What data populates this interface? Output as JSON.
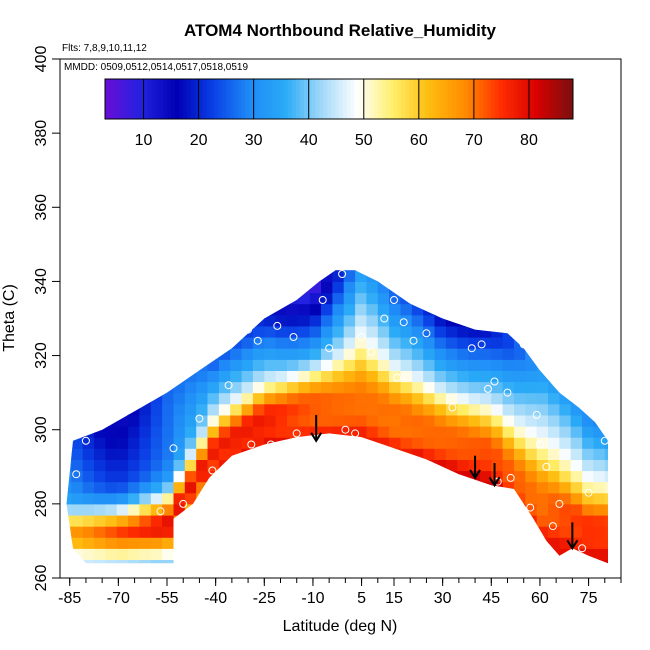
{
  "chart_data": {
    "type": "heatmap",
    "title": "ATOM4 Northbound Relative_Humidity",
    "flights_note": "Flts: 7,8,9,10,11,12",
    "dates_note": "MMDD: 0509,0512,0514,0517,0518,0519",
    "xlabel": "Latitude (deg N)",
    "ylabel": "Theta (C)",
    "xlim": [
      -88,
      85
    ],
    "ylim": [
      260,
      400
    ],
    "xticks": [
      "-85",
      "-70",
      "-55",
      "-40",
      "-25",
      "-10",
      "5",
      "15",
      "30",
      "45",
      "60",
      "75"
    ],
    "xtick_values": [
      -85,
      -70,
      -55,
      -40,
      -25,
      -10,
      5,
      15,
      30,
      45,
      60,
      75
    ],
    "yticks": [
      "260",
      "280",
      "300",
      "320",
      "340",
      "360",
      "380",
      "400"
    ],
    "ytick_values": [
      260,
      280,
      300,
      320,
      340,
      360,
      380,
      400
    ],
    "colorbar": {
      "range": [
        3,
        88
      ],
      "tick_labels": [
        "10",
        "20",
        "30",
        "40",
        "50",
        "60",
        "70",
        "80"
      ],
      "tick_values": [
        10,
        20,
        30,
        40,
        50,
        60,
        70,
        80
      ],
      "colors": [
        "#6a0dd6",
        "#2222e0",
        "#0000b4",
        "#0a3fe6",
        "#1f8af7",
        "#29aaf7",
        "#9fd8f8",
        "#ffffff",
        "#ffef6a",
        "#ffbc10",
        "#ff8c00",
        "#ff2d00",
        "#d80000",
        "#7a1010"
      ]
    },
    "boundary_top": [
      {
        "lat": -84,
        "theta": 297
      },
      {
        "lat": -75,
        "theta": 300
      },
      {
        "lat": -65,
        "theta": 305
      },
      {
        "lat": -55,
        "theta": 310
      },
      {
        "lat": -45,
        "theta": 316
      },
      {
        "lat": -35,
        "theta": 322
      },
      {
        "lat": -25,
        "theta": 330
      },
      {
        "lat": -15,
        "theta": 335
      },
      {
        "lat": -8,
        "theta": 340
      },
      {
        "lat": -3,
        "theta": 343
      },
      {
        "lat": 3,
        "theta": 343
      },
      {
        "lat": 10,
        "theta": 340
      },
      {
        "lat": 20,
        "theta": 334
      },
      {
        "lat": 30,
        "theta": 330
      },
      {
        "lat": 40,
        "theta": 327
      },
      {
        "lat": 50,
        "theta": 326
      },
      {
        "lat": 55,
        "theta": 322
      },
      {
        "lat": 60,
        "theta": 316
      },
      {
        "lat": 66,
        "theta": 310
      },
      {
        "lat": 72,
        "theta": 306
      },
      {
        "lat": 77,
        "theta": 302
      },
      {
        "lat": 81,
        "theta": 297
      }
    ],
    "boundary_bottom": [
      {
        "lat": 81,
        "theta": 264
      },
      {
        "lat": 75,
        "theta": 266
      },
      {
        "lat": 70,
        "theta": 268
      },
      {
        "lat": 66,
        "theta": 266
      },
      {
        "lat": 62,
        "theta": 270
      },
      {
        "lat": 58,
        "theta": 276
      },
      {
        "lat": 52,
        "theta": 284
      },
      {
        "lat": 45,
        "theta": 285
      },
      {
        "lat": 35,
        "theta": 288
      },
      {
        "lat": 25,
        "theta": 292
      },
      {
        "lat": 15,
        "theta": 295
      },
      {
        "lat": 5,
        "theta": 298
      },
      {
        "lat": -5,
        "theta": 299
      },
      {
        "lat": -15,
        "theta": 298
      },
      {
        "lat": -25,
        "theta": 296
      },
      {
        "lat": -35,
        "theta": 293
      },
      {
        "lat": -42,
        "theta": 287
      },
      {
        "lat": -47,
        "theta": 280
      },
      {
        "lat": -53,
        "theta": 276
      },
      {
        "lat": -53,
        "theta": 264
      },
      {
        "lat": -80,
        "theta": 264
      },
      {
        "lat": -84,
        "theta": 268
      },
      {
        "lat": -86,
        "theta": 280
      }
    ],
    "rh_field_profile": [
      {
        "lat": -85,
        "theta_lo": 265,
        "theta_hi": 297,
        "rh_bottom": 40,
        "rh_top": 25,
        "core_rh": 70
      },
      {
        "lat": -70,
        "theta_lo": 264,
        "theta_hi": 301,
        "rh_bottom": 35,
        "rh_top": 20,
        "core_rh": 80
      },
      {
        "lat": -55,
        "theta_lo": 264,
        "theta_hi": 310,
        "rh_bottom": 30,
        "rh_top": 25,
        "core_rh": 85
      },
      {
        "lat": -40,
        "theta_lo": 289,
        "theta_hi": 318,
        "rh_bottom": 78,
        "rh_top": 20,
        "core_rh": 78
      },
      {
        "lat": -25,
        "theta_lo": 296,
        "theta_hi": 330,
        "rh_bottom": 80,
        "rh_top": 22,
        "core_rh": 80
      },
      {
        "lat": -10,
        "theta_lo": 299,
        "theta_hi": 338,
        "rh_bottom": 78,
        "rh_top": 12,
        "core_rh": 75
      },
      {
        "lat": 5,
        "theta_lo": 299,
        "theta_hi": 343,
        "rh_bottom": 80,
        "rh_top": 30,
        "core_rh": 70
      },
      {
        "lat": 15,
        "theta_lo": 296,
        "theta_hi": 336,
        "rh_bottom": 78,
        "rh_top": 20,
        "core_rh": 70
      },
      {
        "lat": 30,
        "theta_lo": 291,
        "theta_hi": 330,
        "rh_bottom": 82,
        "rh_top": 18,
        "core_rh": 72
      },
      {
        "lat": 45,
        "theta_lo": 286,
        "theta_hi": 326,
        "rh_bottom": 85,
        "rh_top": 25,
        "core_rh": 75
      },
      {
        "lat": 60,
        "theta_lo": 272,
        "theta_hi": 316,
        "rh_bottom": 80,
        "rh_top": 30,
        "core_rh": 70
      },
      {
        "lat": 75,
        "theta_lo": 266,
        "theta_hi": 302,
        "rh_bottom": 82,
        "rh_top": 25,
        "core_rh": 75
      }
    ],
    "observation_points": [
      {
        "lat": -83,
        "theta": 288
      },
      {
        "lat": -80,
        "theta": 297
      },
      {
        "lat": -57,
        "theta": 278
      },
      {
        "lat": -53,
        "theta": 295
      },
      {
        "lat": -50,
        "theta": 280
      },
      {
        "lat": -45,
        "theta": 303
      },
      {
        "lat": -41,
        "theta": 289
      },
      {
        "lat": -36,
        "theta": 312
      },
      {
        "lat": -30,
        "theta": 327
      },
      {
        "lat": -29,
        "theta": 296
      },
      {
        "lat": -27,
        "theta": 324
      },
      {
        "lat": -23,
        "theta": 296
      },
      {
        "lat": -21,
        "theta": 328
      },
      {
        "lat": -16,
        "theta": 325
      },
      {
        "lat": -15,
        "theta": 299
      },
      {
        "lat": -7,
        "theta": 335
      },
      {
        "lat": -5,
        "theta": 322
      },
      {
        "lat": -1,
        "theta": 342
      },
      {
        "lat": 0,
        "theta": 300
      },
      {
        "lat": 3,
        "theta": 299
      },
      {
        "lat": 5,
        "theta": 325
      },
      {
        "lat": 8,
        "theta": 321
      },
      {
        "lat": 12,
        "theta": 330
      },
      {
        "lat": 15,
        "theta": 335
      },
      {
        "lat": 16,
        "theta": 314
      },
      {
        "lat": 18,
        "theta": 329
      },
      {
        "lat": 21,
        "theta": 324
      },
      {
        "lat": 25,
        "theta": 326
      },
      {
        "lat": 33,
        "theta": 306
      },
      {
        "lat": 39,
        "theta": 322
      },
      {
        "lat": 42,
        "theta": 323
      },
      {
        "lat": 44,
        "theta": 311
      },
      {
        "lat": 46,
        "theta": 313
      },
      {
        "lat": 47,
        "theta": 286
      },
      {
        "lat": 50,
        "theta": 310
      },
      {
        "lat": 51,
        "theta": 287
      },
      {
        "lat": 55,
        "theta": 323
      },
      {
        "lat": 57,
        "theta": 279
      },
      {
        "lat": 59,
        "theta": 304
      },
      {
        "lat": 60,
        "theta": 296
      },
      {
        "lat": 62,
        "theta": 290
      },
      {
        "lat": 64,
        "theta": 274
      },
      {
        "lat": 66,
        "theta": 280
      },
      {
        "lat": 68,
        "theta": 265
      },
      {
        "lat": 73,
        "theta": 268
      },
      {
        "lat": 75,
        "theta": 283
      },
      {
        "lat": 77,
        "theta": 304
      },
      {
        "lat": 80,
        "theta": 297
      }
    ],
    "flight_arrows": [
      {
        "lat": -9,
        "theta_tip": 297,
        "theta_tail": 304
      },
      {
        "lat": 40,
        "theta_tip": 287,
        "theta_tail": 293
      },
      {
        "lat": 46,
        "theta_tip": 285,
        "theta_tail": 291
      },
      {
        "lat": 70,
        "theta_tip": 268,
        "theta_tail": 275
      }
    ]
  }
}
